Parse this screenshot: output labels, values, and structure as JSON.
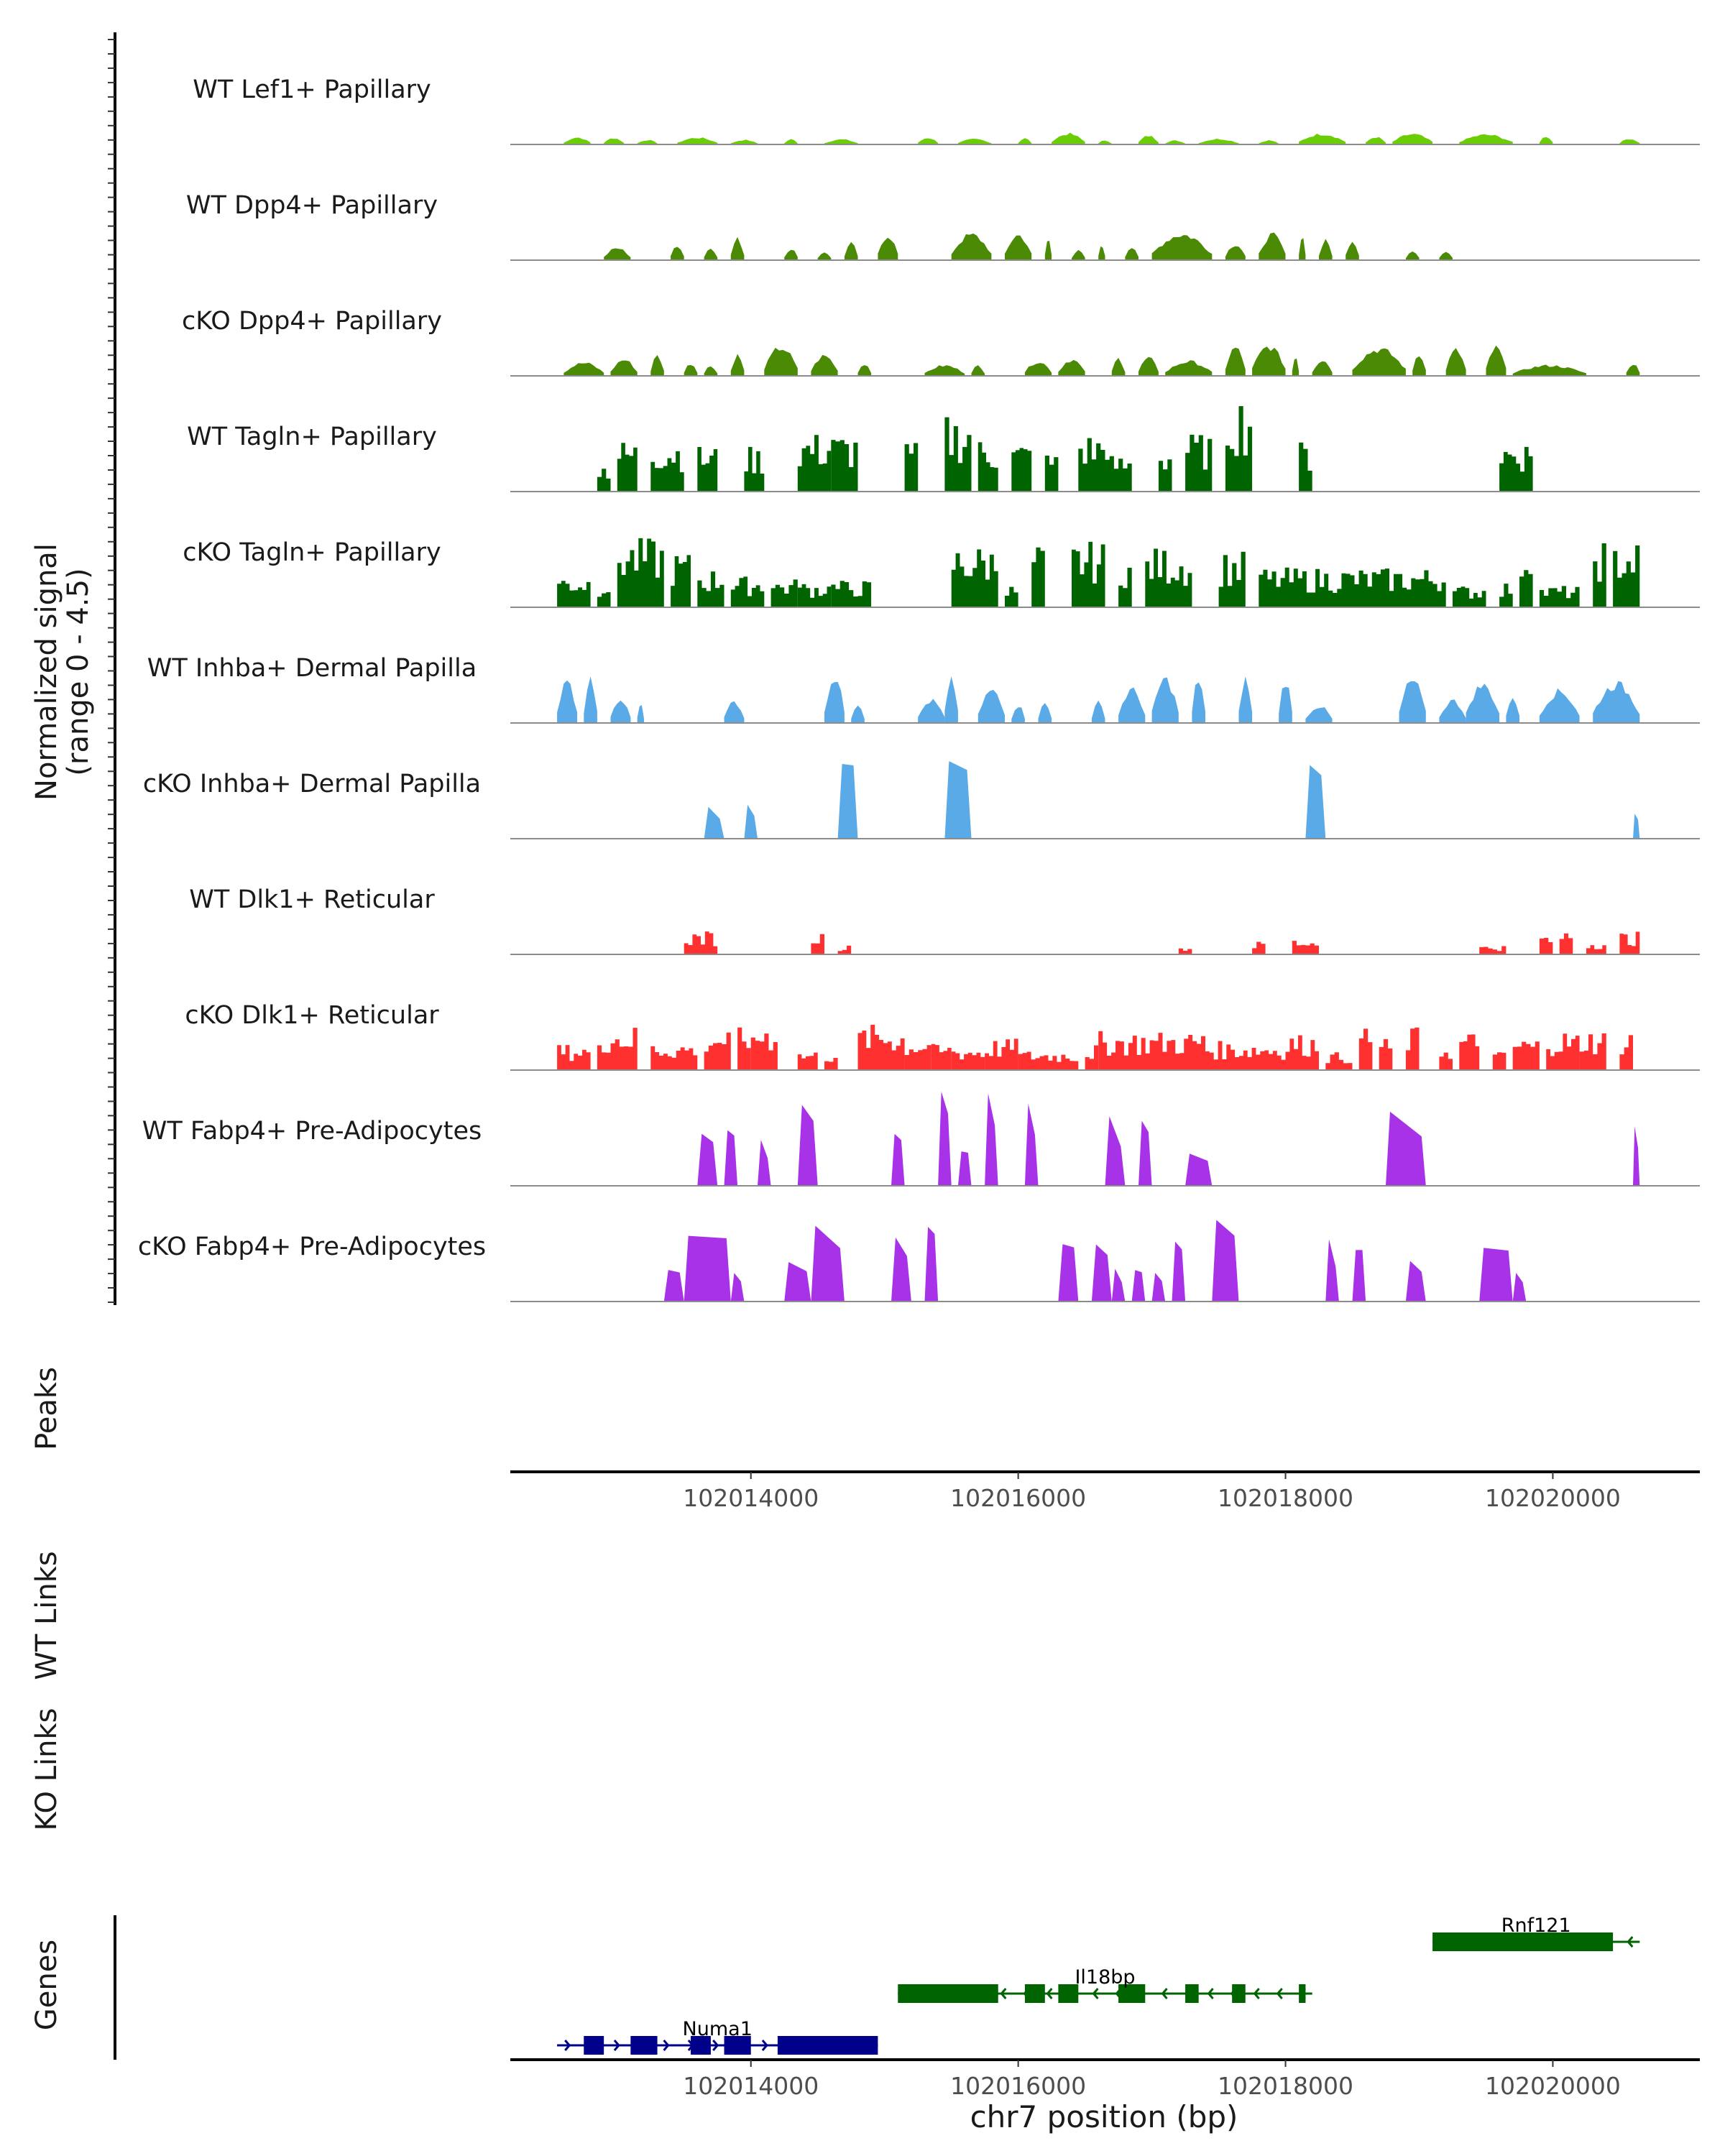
{
  "chart_data": {
    "type": "area",
    "title": "",
    "xlabel": "chr7 position (bp)",
    "ylabel_lines": [
      "Normalized signal",
      "(range 0 - 4.5)"
    ],
    "ylim": [
      0,
      4.5
    ],
    "xlim": [
      102012200,
      102021100
    ],
    "x_ticks": [
      102014000,
      102016000,
      102018000,
      102020000
    ],
    "x_tick_labels": [
      "102014000",
      "102016000",
      "102018000",
      "102020000"
    ],
    "tracks": [
      {
        "name": "WT Lef1+ Papillary",
        "color": "#6acd06",
        "shape": "smooth",
        "height": 0.55,
        "peaks": [
          [
            102012600,
            102012800
          ],
          [
            102012900,
            102013050
          ],
          [
            102013150,
            102013300
          ],
          [
            102013450,
            102013750
          ],
          [
            102013850,
            102014050
          ],
          [
            102014250,
            102014350
          ],
          [
            102014550,
            102014800
          ],
          [
            102015250,
            102015400
          ],
          [
            102015550,
            102015800
          ],
          [
            102016000,
            102016100
          ],
          [
            102016250,
            102016500
          ],
          [
            102016600,
            102016700
          ],
          [
            102016900,
            102017050
          ],
          [
            102017100,
            102017250
          ],
          [
            102017350,
            102017650
          ],
          [
            102017800,
            102017950
          ],
          [
            102018100,
            102018450
          ],
          [
            102018600,
            102018750
          ],
          [
            102018800,
            102019100
          ],
          [
            102019300,
            102019700
          ],
          [
            102019900,
            102020000
          ],
          [
            102020500,
            102020650
          ]
        ]
      },
      {
        "name": "WT Dpp4+ Papillary",
        "color": "#4a8a05",
        "shape": "smooth",
        "height": 1.3,
        "peaks": [
          [
            102012900,
            102013100
          ],
          [
            102013400,
            102013500
          ],
          [
            102013650,
            102013750
          ],
          [
            102013850,
            102013950
          ],
          [
            102014250,
            102014350
          ],
          [
            102014500,
            102014600
          ],
          [
            102014700,
            102014800
          ],
          [
            102014950,
            102015100
          ],
          [
            102015500,
            102015800
          ],
          [
            102015900,
            102016100
          ],
          [
            102016200,
            102016250
          ],
          [
            102016400,
            102016500
          ],
          [
            102016600,
            102016650
          ],
          [
            102016800,
            102016900
          ],
          [
            102017000,
            102017450
          ],
          [
            102017550,
            102017700
          ],
          [
            102017800,
            102018000
          ],
          [
            102018100,
            102018150
          ],
          [
            102018250,
            102018350
          ],
          [
            102018450,
            102018550
          ],
          [
            102018900,
            102019000
          ],
          [
            102019150,
            102019250
          ]
        ]
      },
      {
        "name": "cKO Dpp4+ Papillary",
        "color": "#4a8a05",
        "shape": "smooth",
        "height": 1.7,
        "peaks": [
          [
            102012600,
            102012900
          ],
          [
            102012950,
            102013150
          ],
          [
            102013250,
            102013350
          ],
          [
            102013500,
            102013600
          ],
          [
            102013650,
            102013750
          ],
          [
            102013850,
            102013950
          ],
          [
            102014100,
            102014350
          ],
          [
            102014450,
            102014650
          ],
          [
            102014800,
            102014900
          ],
          [
            102015300,
            102015600
          ],
          [
            102015650,
            102015750
          ],
          [
            102016050,
            102016250
          ],
          [
            102016300,
            102016500
          ],
          [
            102016700,
            102016800
          ],
          [
            102016900,
            102017050
          ],
          [
            102017100,
            102017450
          ],
          [
            102017550,
            102017700
          ],
          [
            102017750,
            102018000
          ],
          [
            102018050,
            102018100
          ],
          [
            102018200,
            102018350
          ],
          [
            102018500,
            102018900
          ],
          [
            102018950,
            102019050
          ],
          [
            102019200,
            102019350
          ],
          [
            102019500,
            102019650
          ],
          [
            102019700,
            102020250
          ],
          [
            102020550,
            102020650
          ]
        ]
      },
      {
        "name": "WT Tagln+ Papillary",
        "color": "#006400",
        "shape": "step",
        "height": 4.5,
        "peaks": [
          [
            102012850,
            102012950
          ],
          [
            102013000,
            102013150
          ],
          [
            102013250,
            102013500
          ],
          [
            102013600,
            102013750
          ],
          [
            102013950,
            102014100
          ],
          [
            102014350,
            102014600
          ],
          [
            102014600,
            102014800
          ],
          [
            102015150,
            102015250
          ],
          [
            102015450,
            102015650
          ],
          [
            102015700,
            102015850
          ],
          [
            102015950,
            102016100
          ],
          [
            102016200,
            102016300
          ],
          [
            102016450,
            102016650
          ],
          [
            102016650,
            102016850
          ],
          [
            102017050,
            102017150
          ],
          [
            102017250,
            102017450
          ],
          [
            102017550,
            102017750
          ],
          [
            102018100,
            102018200
          ],
          [
            102019600,
            102019850
          ]
        ]
      },
      {
        "name": "cKO Tagln+ Papillary",
        "color": "#006400",
        "shape": "step",
        "height": 3.2,
        "peaks": [
          [
            102012550,
            102012800
          ],
          [
            102012850,
            102012950
          ],
          [
            102013000,
            102013350
          ],
          [
            102013400,
            102013550
          ],
          [
            102013600,
            102013800
          ],
          [
            102013850,
            102014100
          ],
          [
            102014150,
            102014350
          ],
          [
            102014350,
            102014600
          ],
          [
            102014600,
            102014900
          ],
          [
            102015500,
            102015850
          ],
          [
            102015900,
            102016000
          ],
          [
            102016100,
            102016200
          ],
          [
            102016400,
            102016650
          ],
          [
            102016750,
            102016850
          ],
          [
            102016950,
            102017300
          ],
          [
            102017500,
            102017700
          ],
          [
            102017800,
            102019200
          ],
          [
            102019250,
            102019500
          ],
          [
            102019600,
            102019700
          ],
          [
            102019750,
            102019850
          ],
          [
            102019900,
            102020200
          ],
          [
            102020300,
            102020400
          ],
          [
            102020450,
            102020650
          ]
        ]
      },
      {
        "name": "WT Inhba+ Dermal Papilla",
        "color": "#5aaae8",
        "shape": "smooth",
        "height": 2.6,
        "peaks": [
          [
            102012550,
            102012700
          ],
          [
            102012750,
            102012850
          ],
          [
            102012950,
            102013100
          ],
          [
            102013150,
            102013200
          ],
          [
            102013800,
            102013950
          ],
          [
            102014550,
            102014700
          ],
          [
            102014750,
            102014850
          ],
          [
            102015250,
            102015450
          ],
          [
            102015450,
            102015550
          ],
          [
            102015700,
            102015900
          ],
          [
            102015950,
            102016050
          ],
          [
            102016150,
            102016250
          ],
          [
            102016550,
            102016650
          ],
          [
            102016750,
            102016950
          ],
          [
            102017000,
            102017200
          ],
          [
            102017300,
            102017400
          ],
          [
            102017650,
            102017750
          ],
          [
            102017950,
            102018050
          ],
          [
            102018150,
            102018350
          ],
          [
            102018850,
            102019050
          ],
          [
            102019150,
            102019350
          ],
          [
            102019350,
            102019600
          ],
          [
            102019650,
            102019750
          ],
          [
            102019900,
            102020200
          ],
          [
            102020300,
            102020650
          ]
        ]
      },
      {
        "name": "cKO Inhba+ Dermal Papilla",
        "color": "#5aaae8",
        "shape": "trap",
        "height": 3.5,
        "peaks": [
          [
            102013650,
            102013800
          ],
          [
            102013950,
            102014050
          ],
          [
            102014650,
            102014800
          ],
          [
            102015450,
            102015650
          ],
          [
            102018150,
            102018300
          ],
          [
            102020600,
            102020650
          ]
        ]
      },
      {
        "name": "WT Dlk1+ Reticular",
        "color": "#ff3030",
        "shape": "step",
        "height": 1.2,
        "peaks": [
          [
            102013500,
            102013750
          ],
          [
            102014450,
            102014550
          ],
          [
            102014650,
            102014750
          ],
          [
            102017200,
            102017300
          ],
          [
            102017750,
            102017850
          ],
          [
            102018050,
            102018250
          ],
          [
            102019450,
            102019650
          ],
          [
            102019900,
            102020000
          ],
          [
            102020050,
            102020150
          ],
          [
            102020250,
            102020400
          ],
          [
            102020500,
            102020650
          ]
        ]
      },
      {
        "name": "cKO Dlk1+ Reticular",
        "color": "#ff3030",
        "shape": "step",
        "height": 2.2,
        "peaks": [
          [
            102012550,
            102012800
          ],
          [
            102012850,
            102013150
          ],
          [
            102013250,
            102013600
          ],
          [
            102013650,
            102013850
          ],
          [
            102013900,
            102014000
          ],
          [
            102014000,
            102014200
          ],
          [
            102014350,
            102014500
          ],
          [
            102014550,
            102014650
          ],
          [
            102014800,
            102015150
          ],
          [
            102015150,
            102015350
          ],
          [
            102015350,
            102015500
          ],
          [
            102015500,
            102015750
          ],
          [
            102015750,
            102016000
          ],
          [
            102016000,
            102016450
          ],
          [
            102016500,
            102016600
          ],
          [
            102016600,
            102017400
          ],
          [
            102017400,
            102018000
          ],
          [
            102018000,
            102018250
          ],
          [
            102018300,
            102018500
          ],
          [
            102018550,
            102018650
          ],
          [
            102018700,
            102018800
          ],
          [
            102018900,
            102019000
          ],
          [
            102019150,
            102019250
          ],
          [
            102019300,
            102019450
          ],
          [
            102019550,
            102019650
          ],
          [
            102019700,
            102019900
          ],
          [
            102019950,
            102020200
          ],
          [
            102020200,
            102020400
          ],
          [
            102020500,
            102020600
          ]
        ]
      },
      {
        "name": "WT Fabp4+ Pre-Adipocytes",
        "color": "#a832e8",
        "shape": "trap",
        "height": 4.3,
        "peaks": [
          [
            102013600,
            102013750
          ],
          [
            102013800,
            102013900
          ],
          [
            102014050,
            102014150
          ],
          [
            102014350,
            102014500
          ],
          [
            102015050,
            102015150
          ],
          [
            102015400,
            102015500
          ],
          [
            102015550,
            102015650
          ],
          [
            102015750,
            102015850
          ],
          [
            102016050,
            102016150
          ],
          [
            102016650,
            102016800
          ],
          [
            102016900,
            102017000
          ],
          [
            102017250,
            102017450
          ],
          [
            102018750,
            102019050
          ],
          [
            102020600,
            102020650
          ]
        ]
      },
      {
        "name": "cKO Fabp4+ Pre-Adipocytes",
        "color": "#a832e8",
        "shape": "trap",
        "height": 4.0,
        "peaks": [
          [
            102013350,
            102013500
          ],
          [
            102013500,
            102013850
          ],
          [
            102013850,
            102013950
          ],
          [
            102014250,
            102014450
          ],
          [
            102014450,
            102014700
          ],
          [
            102015050,
            102015200
          ],
          [
            102015300,
            102015400
          ],
          [
            102016300,
            102016450
          ],
          [
            102016550,
            102016700
          ],
          [
            102016700,
            102016800
          ],
          [
            102016850,
            102016950
          ],
          [
            102017000,
            102017100
          ],
          [
            102017150,
            102017250
          ],
          [
            102017450,
            102017650
          ],
          [
            102018300,
            102018400
          ],
          [
            102018500,
            102018600
          ],
          [
            102018900,
            102019050
          ],
          [
            102019450,
            102019700
          ],
          [
            102019700,
            102019800
          ]
        ]
      }
    ],
    "panel_labels": {
      "peaks": "Peaks",
      "wt_links": "WT Links",
      "ko_links": "KO Links",
      "genes": "Genes"
    },
    "genes": [
      {
        "name": "Numa1",
        "strand": "+",
        "start": 102012550,
        "end": 102014950,
        "color": "#00008b",
        "exons": [
          [
            102012750,
            102012900
          ],
          [
            102013100,
            102013300
          ],
          [
            102013550,
            102013700
          ],
          [
            102013800,
            102014000
          ],
          [
            102014200,
            102014950
          ]
        ]
      },
      {
        "name": "Il18bp",
        "strand": "-",
        "start": 102015100,
        "end": 102018200,
        "color": "#006400",
        "exons": [
          [
            102015100,
            102015850
          ],
          [
            102016050,
            102016200
          ],
          [
            102016300,
            102016450
          ],
          [
            102016750,
            102016950
          ],
          [
            102017250,
            102017350
          ],
          [
            102017600,
            102017700
          ],
          [
            102018100,
            102018150
          ]
        ]
      },
      {
        "name": "Rnf121",
        "strand": "-",
        "start": 102019100,
        "end": 102020650,
        "color": "#006400",
        "exons": [
          [
            102019100,
            102020450
          ]
        ]
      }
    ]
  }
}
